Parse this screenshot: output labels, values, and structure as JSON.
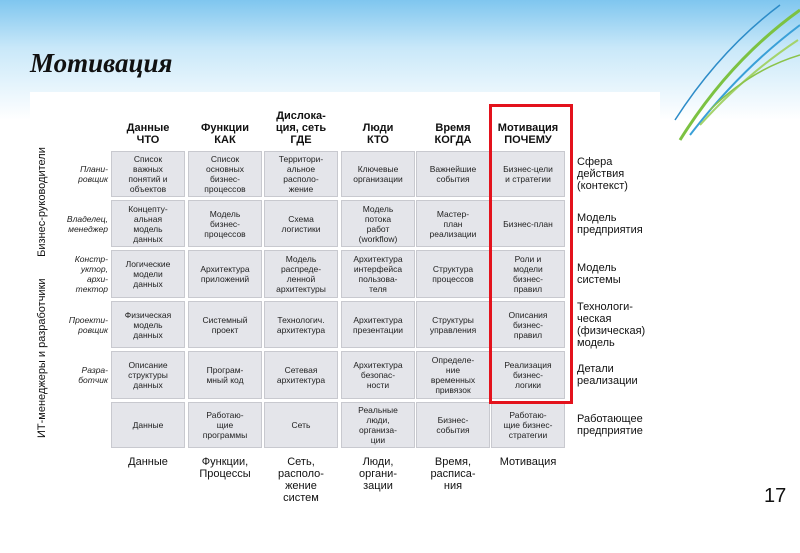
{
  "slide": {
    "title": "Мотивация",
    "page_number": "17"
  },
  "columns": [
    "Данные\nЧТО",
    "Функции\nКАК",
    "Дислока-\nция, сеть\nГДЕ",
    "Люди\nКТО",
    "Время\nКОГДА",
    "Мотивация\nПОЧЕМУ"
  ],
  "groups": [
    "Бизнес-руководители",
    "ИТ-менеджеры и разработчики"
  ],
  "roles": [
    "Плани-\nровщик",
    "Владелец,\nменеджер",
    "Констр-\nуктор,\nархи-\nтектор",
    "Проекти-\nровщик",
    "Разра-\nботчик",
    ""
  ],
  "row_labels": [
    "Сфера\nдействия\n(контекст)",
    "Модель\nпредприятия",
    "Модель\nсистемы",
    "Технологи-\nческая\n(физическая)\nмодель",
    "Детали\nреализации",
    "Работающее\nпредприятие"
  ],
  "cells": [
    [
      "Список\nважных\nпонятий и\nобъектов",
      "Список\nосновных\nбизнес-\nпроцессов",
      "Территори-\nальное\nрасполо-\nжение",
      "Ключевые\nорганизации",
      "Важнейшие\nсобытия",
      "Бизнес-цели\nи стратегии"
    ],
    [
      "Концепту-\nальная\nмодель\nданных",
      "Модель\nбизнес-\nпроцессов",
      "Схема\nлогистики",
      "Модель\nпотока\nработ\n(workflow)",
      "Мастер-\nплан\nреализации",
      "Бизнес-план"
    ],
    [
      "Логические\nмодели\nданных",
      "Архитектура\nприложений",
      "Модель\nраспреде-\nленной\nархитектуры",
      "Архитектура\nинтерфейса\nпользова-\nтеля",
      "Структура\nпроцессов",
      "Роли и\nмодели\nбизнес-\nправил"
    ],
    [
      "Физическая\nмодель\nданных",
      "Системный\nпроект",
      "Технологич.\nархитектура",
      "Архитектура\nпрезентации",
      "Структуры\nуправления",
      "Описания\nбизнес-\nправил"
    ],
    [
      "Описание\nструктуры\nданных",
      "Програм-\nмный код",
      "Сетевая\nархитектура",
      "Архитектура\nбезопас-\nности",
      "Определе-\nние\nвременных\nпривязок",
      "Реализация\nбизнес-\nлогики"
    ],
    [
      "Данные",
      "Работаю-\nщие\nпрограммы",
      "Сеть",
      "Реальные\nлюди,\nорганиза-\nции",
      "Бизнес-\nсобытия",
      "Работаю-\nщие бизнес-\nстратегии"
    ]
  ],
  "bottom_labels": [
    "Данные",
    "Функции,\nПроцессы",
    "Сеть,\nрасполо-\nжение\nсистем",
    "Люди,\nоргани-\nзации",
    "Время,\nрасписа-\nния",
    "Мотивация"
  ],
  "highlight_color": "#e3121c"
}
